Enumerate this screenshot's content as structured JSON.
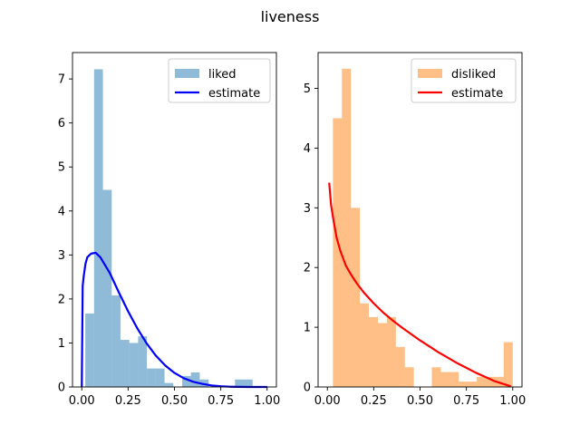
{
  "figure": {
    "title": "liveness"
  },
  "chart_data": [
    {
      "type": "bar",
      "title": "",
      "xlabel": "",
      "ylabel": "",
      "xlim": [
        -0.05,
        1.05
      ],
      "ylim": [
        0,
        7.6
      ],
      "xticks": [
        0.0,
        0.25,
        0.5,
        0.75,
        1.0
      ],
      "xtick_labels": [
        "0.00",
        "0.25",
        "0.50",
        "0.75",
        "1.00"
      ],
      "yticks": [
        0,
        1,
        2,
        3,
        4,
        5,
        6,
        7
      ],
      "ytick_labels": [
        "0",
        "1",
        "2",
        "3",
        "4",
        "5",
        "6",
        "7"
      ],
      "legend_position": "top-right",
      "grid": false,
      "histogram": {
        "name": "liked",
        "color": "#1f77b4",
        "opacity": 0.5,
        "bin_start": 0.019,
        "bin_width": 0.0475,
        "values": [
          1.67,
          7.22,
          4.48,
          2.08,
          1.07,
          1.0,
          1.15,
          0.42,
          0.42,
          0.09,
          0,
          0.25,
          0.33,
          0.17,
          0,
          0,
          0,
          0.17,
          0.17,
          0
        ]
      },
      "curve": {
        "name": "estimate",
        "color": "#0000ff",
        "x": [
          0.0,
          0.005,
          0.01,
          0.02,
          0.03,
          0.05,
          0.075,
          0.1,
          0.15,
          0.2,
          0.25,
          0.3,
          0.35,
          0.4,
          0.45,
          0.5,
          0.55,
          0.6,
          0.65,
          0.7,
          0.75,
          0.8,
          0.85,
          0.9,
          0.95,
          1.0
        ],
        "y": [
          0,
          2.3,
          2.5,
          2.8,
          2.95,
          3.03,
          3.05,
          2.95,
          2.6,
          2.15,
          1.72,
          1.33,
          0.99,
          0.71,
          0.49,
          0.32,
          0.2,
          0.12,
          0.07,
          0.035,
          0.015,
          0.006,
          0.002,
          0.0005,
          0.0,
          0.0
        ]
      }
    },
    {
      "type": "bar",
      "title": "",
      "xlabel": "",
      "ylabel": "",
      "xlim": [
        -0.05,
        1.05
      ],
      "ylim": [
        0,
        5.6
      ],
      "xticks": [
        0.0,
        0.25,
        0.5,
        0.75,
        1.0
      ],
      "xtick_labels": [
        "0.00",
        "0.25",
        "0.50",
        "0.75",
        "1.00"
      ],
      "yticks": [
        0,
        1,
        2,
        3,
        4,
        5
      ],
      "ytick_labels": [
        "0",
        "1",
        "2",
        "3",
        "4",
        "5"
      ],
      "legend_position": "top-right",
      "grid": false,
      "histogram": {
        "name": "disliked",
        "color": "#ff7f0e",
        "opacity": 0.5,
        "bin_start": 0.03,
        "bin_width": 0.0485,
        "values": [
          4.5,
          5.33,
          3.0,
          1.4,
          1.17,
          1.07,
          1.17,
          0.67,
          0.33,
          0,
          0,
          0.33,
          0.25,
          0.25,
          0.09,
          0.09,
          0.17,
          0.17,
          0.17,
          0.75
        ]
      },
      "curve": {
        "name": "estimate",
        "color": "#ff0000",
        "x": [
          0.01,
          0.02,
          0.03,
          0.05,
          0.07,
          0.1,
          0.13,
          0.16,
          0.2,
          0.25,
          0.3,
          0.35,
          0.4,
          0.45,
          0.5,
          0.55,
          0.6,
          0.65,
          0.7,
          0.75,
          0.8,
          0.85,
          0.9,
          0.95,
          0.99
        ],
        "y": [
          3.42,
          3.05,
          2.85,
          2.5,
          2.28,
          2.03,
          1.87,
          1.73,
          1.57,
          1.4,
          1.25,
          1.12,
          1.0,
          0.89,
          0.78,
          0.68,
          0.58,
          0.49,
          0.4,
          0.32,
          0.24,
          0.17,
          0.1,
          0.05,
          0.01
        ]
      }
    }
  ]
}
